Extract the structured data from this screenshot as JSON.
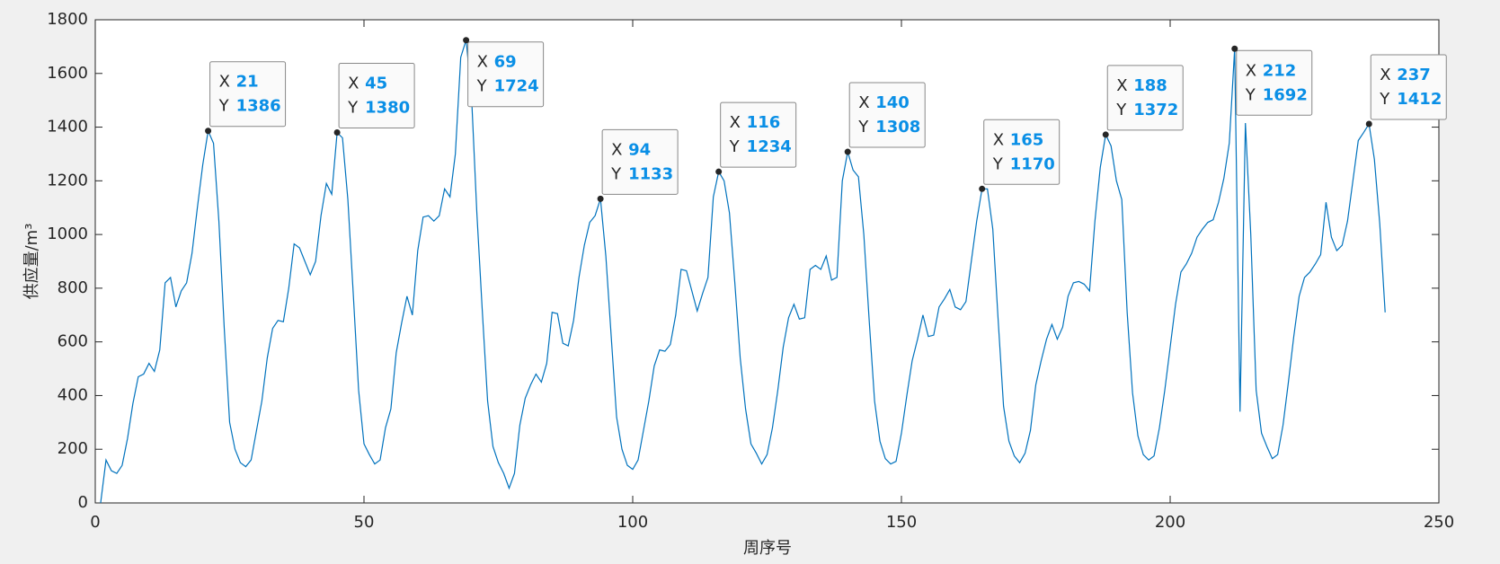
{
  "chart_data": {
    "type": "line",
    "xlabel": "周序号",
    "ylabel": "供应量/m³",
    "color": "#0072bd",
    "x": [
      1,
      2,
      3,
      4,
      5,
      6,
      7,
      8,
      9,
      10,
      11,
      12,
      13,
      14,
      15,
      16,
      17,
      18,
      19,
      20,
      21,
      22,
      23,
      24,
      25,
      26,
      27,
      28,
      29,
      30,
      31,
      32,
      33,
      34,
      35,
      36,
      37,
      38,
      39,
      40,
      41,
      42,
      43,
      44,
      45,
      46,
      47,
      48,
      49,
      50,
      51,
      52,
      53,
      54,
      55,
      56,
      57,
      58,
      59,
      60,
      61,
      62,
      63,
      64,
      65,
      66,
      67,
      68,
      69,
      70,
      71,
      72,
      73,
      74,
      75,
      76,
      77,
      78,
      79,
      80,
      81,
      82,
      83,
      84,
      85,
      86,
      87,
      88,
      89,
      90,
      91,
      92,
      93,
      94,
      95,
      96,
      97,
      98,
      99,
      100,
      101,
      102,
      103,
      104,
      105,
      106,
      107,
      108,
      109,
      110,
      111,
      112,
      113,
      114,
      115,
      116,
      117,
      118,
      119,
      120,
      121,
      122,
      123,
      124,
      125,
      126,
      127,
      128,
      129,
      130,
      131,
      132,
      133,
      134,
      135,
      136,
      137,
      138,
      139,
      140,
      141,
      142,
      143,
      144,
      145,
      146,
      147,
      148,
      149,
      150,
      151,
      152,
      153,
      154,
      155,
      156,
      157,
      158,
      159,
      160,
      161,
      162,
      163,
      164,
      165,
      166,
      167,
      168,
      169,
      170,
      171,
      172,
      173,
      174,
      175,
      176,
      177,
      178,
      179,
      180,
      181,
      182,
      183,
      184,
      185,
      186,
      187,
      188,
      189,
      190,
      191,
      192,
      193,
      194,
      195,
      196,
      197,
      198,
      199,
      200,
      201,
      202,
      203,
      204,
      205,
      206,
      207,
      208,
      209,
      210,
      211,
      212,
      213,
      214,
      215,
      216,
      217,
      218,
      219,
      220,
      221,
      222,
      223,
      224,
      225,
      226,
      227,
      228,
      229,
      230,
      231,
      232,
      233,
      234,
      235,
      236,
      237,
      238,
      239,
      240
    ],
    "values": [
      0,
      160,
      120,
      110,
      140,
      240,
      370,
      470,
      480,
      520,
      490,
      570,
      820,
      840,
      730,
      790,
      820,
      930,
      1100,
      1260,
      1386,
      1340,
      1050,
      650,
      300,
      200,
      150,
      135,
      160,
      270,
      380,
      540,
      650,
      680,
      675,
      800,
      965,
      950,
      900,
      850,
      900,
      1070,
      1190,
      1150,
      1380,
      1360,
      1130,
      780,
      420,
      220,
      180,
      145,
      160,
      280,
      350,
      560,
      670,
      770,
      700,
      940,
      1065,
      1070,
      1050,
      1070,
      1170,
      1140,
      1300,
      1660,
      1724,
      1520,
      1080,
      720,
      380,
      210,
      150,
      110,
      55,
      110,
      290,
      390,
      440,
      480,
      450,
      520,
      710,
      705,
      595,
      585,
      680,
      840,
      960,
      1045,
      1070,
      1133,
      920,
      620,
      320,
      200,
      140,
      125,
      160,
      270,
      380,
      510,
      570,
      565,
      590,
      700,
      870,
      865,
      790,
      715,
      780,
      840,
      1140,
      1234,
      1200,
      1080,
      820,
      540,
      350,
      220,
      185,
      145,
      180,
      280,
      420,
      580,
      690,
      740,
      685,
      690,
      870,
      885,
      870,
      920,
      830,
      840,
      1200,
      1308,
      1240,
      1215,
      1000,
      680,
      380,
      230,
      165,
      145,
      155,
      260,
      400,
      530,
      610,
      700,
      620,
      625,
      730,
      760,
      795,
      730,
      720,
      750,
      900,
      1050,
      1170,
      1170,
      1020,
      680,
      360,
      230,
      175,
      150,
      185,
      270,
      440,
      530,
      610,
      665,
      610,
      655,
      770,
      820,
      825,
      815,
      790,
      1050,
      1250,
      1372,
      1330,
      1200,
      1130,
      710,
      410,
      250,
      180,
      160,
      175,
      280,
      420,
      580,
      740,
      860,
      890,
      930,
      990,
      1020,
      1045,
      1055,
      1120,
      1210,
      1340,
      1692,
      340,
      1415,
      1000,
      420,
      260,
      210,
      165,
      180,
      290,
      450,
      620,
      770,
      840,
      860,
      890,
      925,
      1120,
      990,
      940,
      960,
      1050,
      1200,
      1350,
      1380,
      1412,
      1280,
      1040,
      710
    ],
    "xlim": [
      0,
      250
    ],
    "xticks": [
      0,
      50,
      100,
      150,
      200,
      250
    ],
    "ylim": [
      0,
      1800
    ],
    "yticks": [
      0,
      200,
      400,
      600,
      800,
      1000,
      1200,
      1400,
      1600,
      1800
    ],
    "grid": false,
    "datatip_labels": [
      "X",
      "Y"
    ],
    "annotations": [
      {
        "x": 21,
        "y": 1386
      },
      {
        "x": 45,
        "y": 1380
      },
      {
        "x": 69,
        "y": 1724
      },
      {
        "x": 94,
        "y": 1133
      },
      {
        "x": 116,
        "y": 1234
      },
      {
        "x": 140,
        "y": 1308
      },
      {
        "x": 165,
        "y": 1170
      },
      {
        "x": 188,
        "y": 1372
      },
      {
        "x": 212,
        "y": 1692
      },
      {
        "x": 237,
        "y": 1412
      }
    ]
  }
}
